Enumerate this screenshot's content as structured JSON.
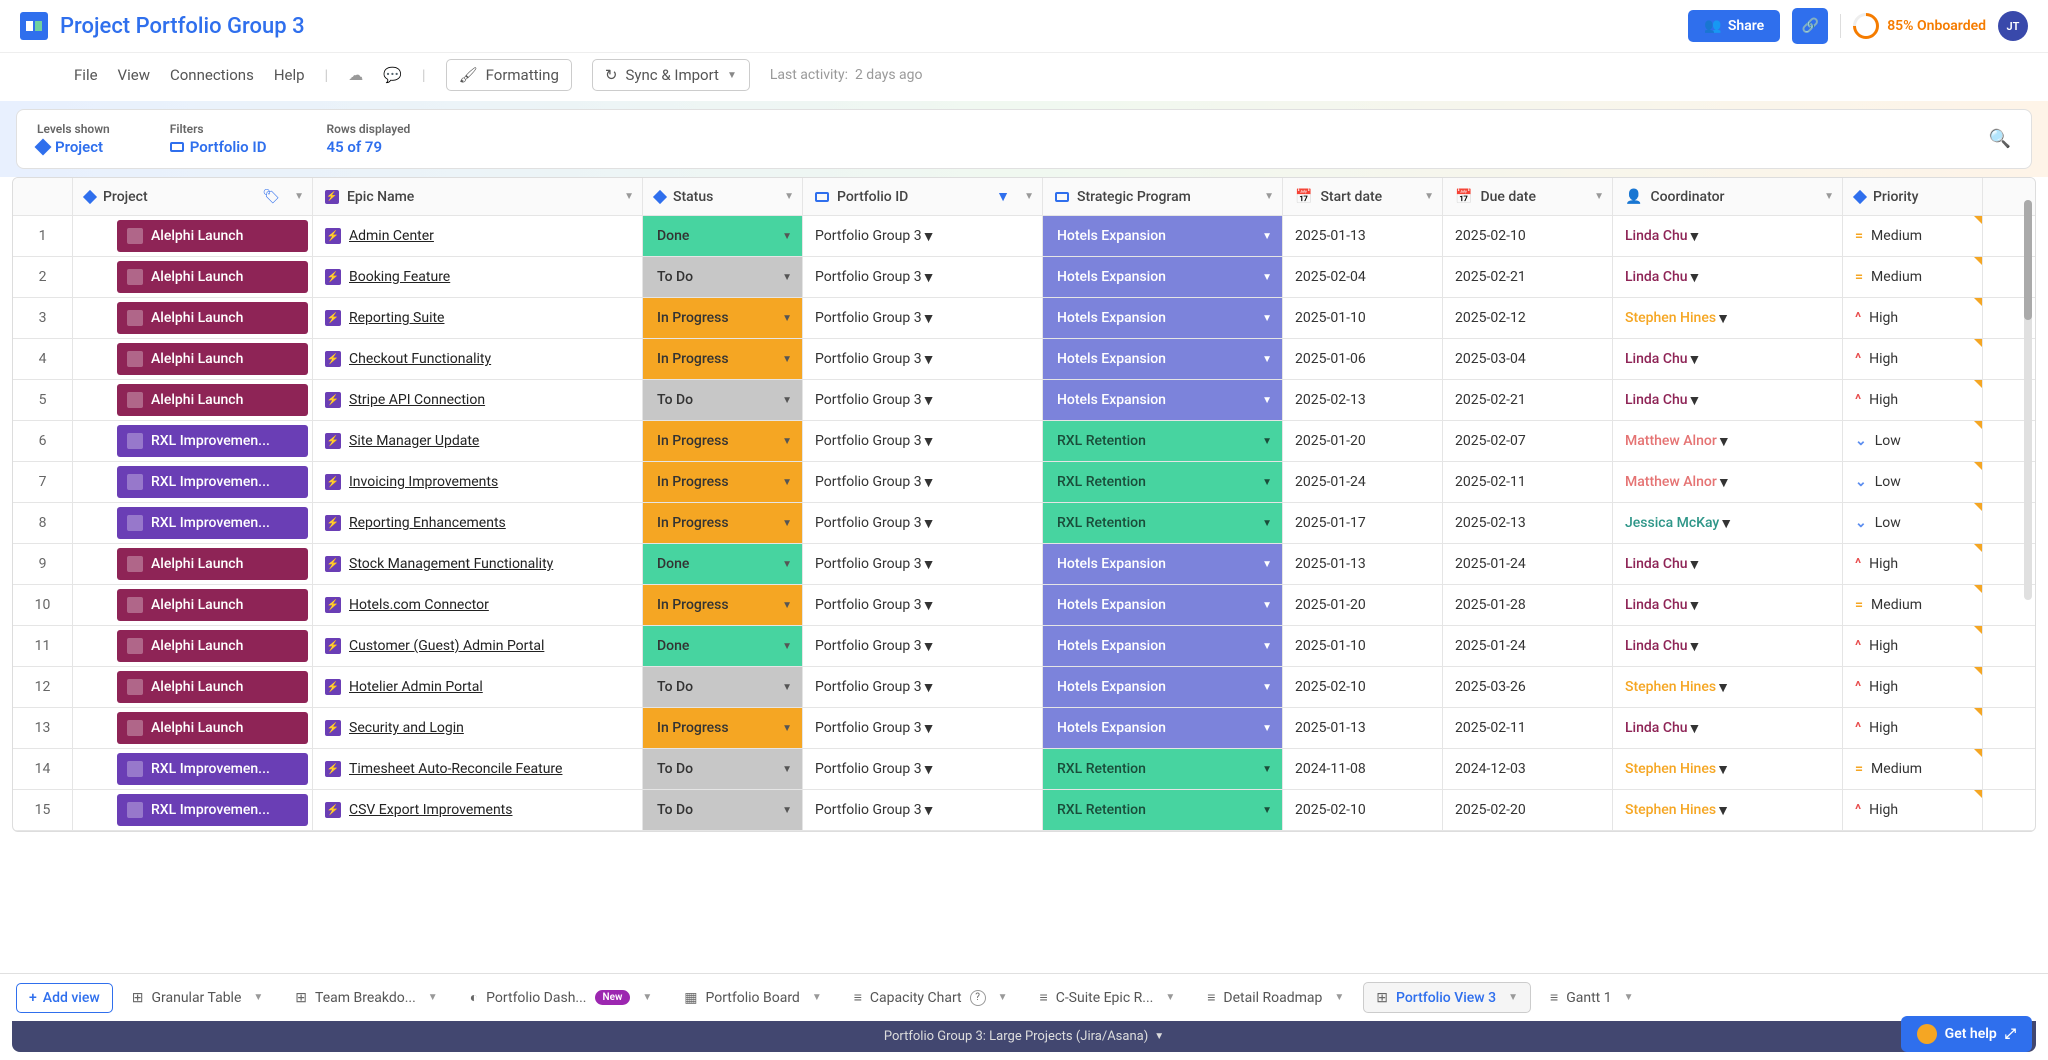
{
  "header": {
    "title": "Project Portfolio Group 3",
    "share_label": "Share",
    "onboard_label": "85% Onboarded",
    "avatar_initials": "JT"
  },
  "menubar": {
    "file": "File",
    "view": "View",
    "connections": "Connections",
    "help": "Help",
    "formatting": "Formatting",
    "sync": "Sync & Import",
    "activity_label": "Last activity:",
    "activity_value": "2 days ago"
  },
  "filterbar": {
    "levels_label": "Levels shown",
    "levels_value": "Project",
    "filters_label": "Filters",
    "filters_value": "Portfolio ID",
    "rows_label": "Rows displayed",
    "rows_value": "45 of 79"
  },
  "columns": {
    "project": "Project",
    "epic": "Epic Name",
    "status": "Status",
    "portfolio": "Portfolio ID",
    "strategic": "Strategic Program",
    "start": "Start date",
    "due": "Due date",
    "coord": "Coordinator",
    "priority": "Priority"
  },
  "rows": [
    {
      "n": 1,
      "proj": "Alelphi Launch",
      "pc": "alelphi",
      "epic": "Admin Center",
      "status": "Done",
      "sc": "done",
      "port": "Portfolio Group 3",
      "strat": "Hotels Expansion",
      "stc": "hotels",
      "start": "2025-01-13",
      "due": "2025-02-10",
      "coord": "Linda Chu",
      "cc": "linda",
      "prio": "Medium",
      "pic": "med"
    },
    {
      "n": 2,
      "proj": "Alelphi Launch",
      "pc": "alelphi",
      "epic": "Booking Feature",
      "status": "To Do",
      "sc": "todo",
      "port": "Portfolio Group 3",
      "strat": "Hotels Expansion",
      "stc": "hotels",
      "start": "2025-02-04",
      "due": "2025-02-21",
      "coord": "Linda Chu",
      "cc": "linda",
      "prio": "Medium",
      "pic": "med"
    },
    {
      "n": 3,
      "proj": "Alelphi Launch",
      "pc": "alelphi",
      "epic": "Reporting Suite",
      "status": "In Progress",
      "sc": "inprog",
      "port": "Portfolio Group 3",
      "strat": "Hotels Expansion",
      "stc": "hotels",
      "start": "2025-01-10",
      "due": "2025-02-12",
      "coord": "Stephen Hines",
      "cc": "stephen",
      "prio": "High",
      "pic": "high"
    },
    {
      "n": 4,
      "proj": "Alelphi Launch",
      "pc": "alelphi",
      "epic": "Checkout Functionality",
      "status": "In Progress",
      "sc": "inprog",
      "port": "Portfolio Group 3",
      "strat": "Hotels Expansion",
      "stc": "hotels",
      "start": "2025-01-06",
      "due": "2025-03-04",
      "coord": "Linda Chu",
      "cc": "linda",
      "prio": "High",
      "pic": "high"
    },
    {
      "n": 5,
      "proj": "Alelphi Launch",
      "pc": "alelphi",
      "epic": "Stripe API Connection",
      "status": "To Do",
      "sc": "todo",
      "port": "Portfolio Group 3",
      "strat": "Hotels Expansion",
      "stc": "hotels",
      "start": "2025-02-13",
      "due": "2025-02-21",
      "coord": "Linda Chu",
      "cc": "linda",
      "prio": "High",
      "pic": "high"
    },
    {
      "n": 6,
      "proj": "RXL Improvemen...",
      "pc": "rxl",
      "epic": "Site Manager Update",
      "status": "In Progress",
      "sc": "inprog",
      "port": "Portfolio Group 3",
      "strat": "RXL Retention",
      "stc": "rxlret",
      "start": "2025-01-20",
      "due": "2025-02-07",
      "coord": "Matthew Alnor",
      "cc": "matthew",
      "prio": "Low",
      "pic": "low"
    },
    {
      "n": 7,
      "proj": "RXL Improvemen...",
      "pc": "rxl",
      "epic": "Invoicing Improvements",
      "status": "In Progress",
      "sc": "inprog",
      "port": "Portfolio Group 3",
      "strat": "RXL Retention",
      "stc": "rxlret",
      "start": "2025-01-24",
      "due": "2025-02-11",
      "coord": "Matthew Alnor",
      "cc": "matthew",
      "prio": "Low",
      "pic": "low"
    },
    {
      "n": 8,
      "proj": "RXL Improvemen...",
      "pc": "rxl",
      "epic": "Reporting Enhancements",
      "status": "In Progress",
      "sc": "inprog",
      "port": "Portfolio Group 3",
      "strat": "RXL Retention",
      "stc": "rxlret",
      "start": "2025-01-17",
      "due": "2025-02-13",
      "coord": "Jessica McKay",
      "cc": "jessica",
      "prio": "Low",
      "pic": "low"
    },
    {
      "n": 9,
      "proj": "Alelphi Launch",
      "pc": "alelphi",
      "epic": "Stock Management Functionality",
      "status": "Done",
      "sc": "done",
      "port": "Portfolio Group 3",
      "strat": "Hotels Expansion",
      "stc": "hotels",
      "start": "2025-01-13",
      "due": "2025-01-24",
      "coord": "Linda Chu",
      "cc": "linda",
      "prio": "High",
      "pic": "high"
    },
    {
      "n": 10,
      "proj": "Alelphi Launch",
      "pc": "alelphi",
      "epic": "Hotels.com Connector",
      "status": "In Progress",
      "sc": "inprog",
      "port": "Portfolio Group 3",
      "strat": "Hotels Expansion",
      "stc": "hotels",
      "start": "2025-01-20",
      "due": "2025-01-28",
      "coord": "Linda Chu",
      "cc": "linda",
      "prio": "Medium",
      "pic": "med"
    },
    {
      "n": 11,
      "proj": "Alelphi Launch",
      "pc": "alelphi",
      "epic": "Customer (Guest) Admin Portal",
      "status": "Done",
      "sc": "done",
      "port": "Portfolio Group 3",
      "strat": "Hotels Expansion",
      "stc": "hotels",
      "start": "2025-01-10",
      "due": "2025-01-24",
      "coord": "Linda Chu",
      "cc": "linda",
      "prio": "High",
      "pic": "high"
    },
    {
      "n": 12,
      "proj": "Alelphi Launch",
      "pc": "alelphi",
      "epic": "Hotelier Admin Portal",
      "status": "To Do",
      "sc": "todo",
      "port": "Portfolio Group 3",
      "strat": "Hotels Expansion",
      "stc": "hotels",
      "start": "2025-02-10",
      "due": "2025-03-26",
      "coord": "Stephen Hines",
      "cc": "stephen",
      "prio": "High",
      "pic": "high"
    },
    {
      "n": 13,
      "proj": "Alelphi Launch",
      "pc": "alelphi",
      "epic": "Security and Login",
      "status": "In Progress",
      "sc": "inprog",
      "port": "Portfolio Group 3",
      "strat": "Hotels Expansion",
      "stc": "hotels",
      "start": "2025-01-13",
      "due": "2025-02-11",
      "coord": "Linda Chu",
      "cc": "linda",
      "prio": "High",
      "pic": "high"
    },
    {
      "n": 14,
      "proj": "RXL Improvemen...",
      "pc": "rxl",
      "epic": "Timesheet Auto-Reconcile Feature",
      "status": "To Do",
      "sc": "todo",
      "port": "Portfolio Group 3",
      "strat": "RXL Retention",
      "stc": "rxlret",
      "start": "2024-11-08",
      "due": "2024-12-03",
      "coord": "Stephen Hines",
      "cc": "stephen",
      "prio": "Medium",
      "pic": "med"
    },
    {
      "n": 15,
      "proj": "RXL Improvemen...",
      "pc": "rxl",
      "epic": "CSV Export Improvements",
      "status": "To Do",
      "sc": "todo",
      "port": "Portfolio Group 3",
      "strat": "RXL Retention",
      "stc": "rxlret",
      "start": "2025-02-10",
      "due": "2025-02-20",
      "coord": "Stephen Hines",
      "cc": "stephen",
      "prio": "High",
      "pic": "high"
    }
  ],
  "tabs": {
    "add_view": "Add view",
    "items": [
      {
        "label": "Granular Table",
        "icon": "⊞"
      },
      {
        "label": "Team Breakdo...",
        "icon": "⊞"
      },
      {
        "label": "Portfolio Dash...",
        "icon": "◐",
        "badge": "New"
      },
      {
        "label": "Portfolio Board",
        "icon": "▦"
      },
      {
        "label": "Capacity Chart",
        "icon": "≡",
        "info": true
      },
      {
        "label": "C-Suite Epic R...",
        "icon": "≡"
      },
      {
        "label": "Detail Roadmap",
        "icon": "≡"
      },
      {
        "label": "Portfolio View 3",
        "icon": "⊞",
        "active": true
      },
      {
        "label": "Gantt 1",
        "icon": "≡"
      }
    ]
  },
  "footer": {
    "title": "Portfolio Group 3: Large Projects (Jira/Asana)",
    "help": "Get help"
  },
  "prio_glyph": {
    "high": "^",
    "med": "=",
    "low": "⌄"
  }
}
